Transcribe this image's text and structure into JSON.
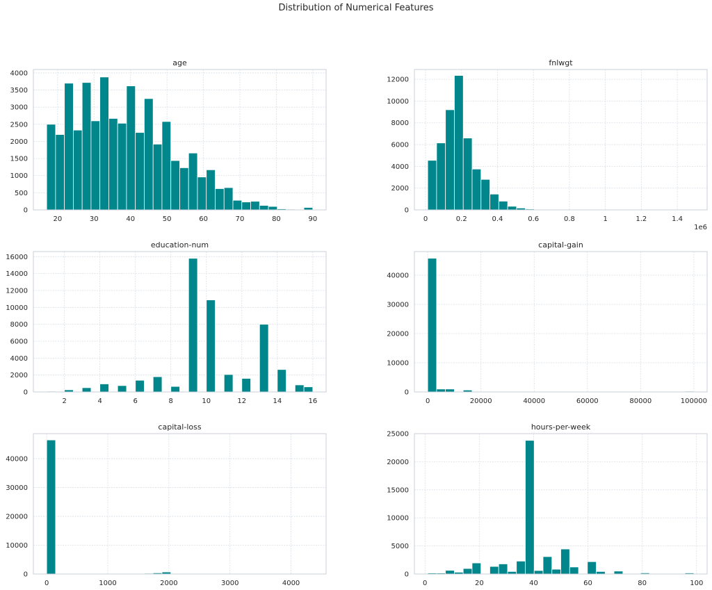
{
  "figure": {
    "title": "Distribution of Numerical Features",
    "bar_color": "#00868b"
  },
  "chart_data": [
    {
      "type": "bar",
      "title": "age",
      "xlabel": "",
      "ylabel": "",
      "grid": true,
      "xlim": [
        13.35,
        93.65
      ],
      "ylim": [
        0,
        4100
      ],
      "xticks": [
        20,
        30,
        40,
        50,
        60,
        70,
        80,
        90
      ],
      "yticks": [
        0,
        500,
        1000,
        1500,
        2000,
        2500,
        3000,
        3500,
        4000
      ],
      "bin_start": 17,
      "bin_width": 2.433,
      "values": [
        2500,
        2200,
        3700,
        2330,
        3720,
        2600,
        3880,
        2670,
        2530,
        3620,
        2260,
        3250,
        1920,
        2580,
        1440,
        1230,
        1660,
        960,
        1170,
        620,
        650,
        280,
        230,
        250,
        130,
        100,
        30,
        20,
        5,
        70
      ]
    },
    {
      "type": "bar",
      "title": "fnlwgt",
      "xlabel": "",
      "ylabel": "",
      "offset_label": "1e6",
      "grid": true,
      "xlim": [
        -0.062,
        1.566
      ],
      "ylim": [
        0,
        12900
      ],
      "xticks": [
        0.0,
        0.2,
        0.4,
        0.6,
        0.8,
        1.0,
        1.2,
        1.4
      ],
      "yticks": [
        0,
        2000,
        4000,
        6000,
        8000,
        10000,
        12000
      ],
      "bin_start": 0.012,
      "bin_width": 0.0494,
      "values": [
        4550,
        6150,
        9200,
        12350,
        6600,
        3750,
        2800,
        1450,
        800,
        330,
        170,
        80,
        40,
        20,
        10,
        6,
        4,
        3,
        2,
        2,
        1,
        1,
        1,
        1,
        0,
        0,
        0,
        0,
        0,
        1
      ]
    },
    {
      "type": "bar",
      "title": "education-num",
      "xlabel": "",
      "ylabel": "",
      "grid": true,
      "xlim": [
        0.25,
        16.75
      ],
      "ylim": [
        0,
        16600
      ],
      "xticks": [
        2,
        4,
        6,
        8,
        10,
        12,
        14,
        16
      ],
      "yticks": [
        0,
        2000,
        4000,
        6000,
        8000,
        10000,
        12000,
        14000,
        16000
      ],
      "bin_start": 1,
      "bin_width": 0.5,
      "values": [
        80,
        0,
        250,
        0,
        500,
        0,
        950,
        0,
        750,
        0,
        1380,
        0,
        1800,
        0,
        650,
        0,
        15800,
        0,
        10880,
        0,
        2060,
        0,
        1600,
        0,
        8000,
        0,
        2650,
        0,
        830,
        600
      ]
    },
    {
      "type": "bar",
      "title": "capital-gain",
      "xlabel": "",
      "ylabel": "",
      "grid": true,
      "xlim": [
        -5000,
        104999
      ],
      "ylim": [
        0,
        48100
      ],
      "xticks": [
        0,
        20000,
        40000,
        60000,
        80000,
        100000
      ],
      "yticks": [
        0,
        10000,
        20000,
        30000,
        40000
      ],
      "bin_start": 0,
      "bin_width": 3333.3,
      "values": [
        45800,
        1000,
        1000,
        120,
        650,
        100,
        40,
        20,
        10,
        5,
        5,
        5,
        3,
        2,
        2,
        2,
        1,
        1,
        1,
        1,
        1,
        1,
        1,
        1,
        1,
        1,
        1,
        1,
        1,
        240
      ]
    },
    {
      "type": "bar",
      "title": "capital-loss",
      "xlabel": "",
      "ylabel": "",
      "grid": true,
      "xlim": [
        -217.8,
        4573.8
      ],
      "ylim": [
        0,
        48700
      ],
      "xticks": [
        0,
        1000,
        2000,
        3000,
        4000
      ],
      "yticks": [
        0,
        10000,
        20000,
        30000,
        40000
      ],
      "bin_start": 0,
      "bin_width": 145.2,
      "values": [
        46500,
        10,
        10,
        20,
        15,
        15,
        20,
        15,
        20,
        20,
        200,
        250,
        400,
        700,
        100,
        50,
        30,
        20,
        10,
        10,
        5,
        5,
        5,
        3,
        3,
        3,
        2,
        2,
        2,
        5
      ]
    },
    {
      "type": "bar",
      "title": "hours-per-week",
      "xlabel": "",
      "ylabel": "",
      "grid": true,
      "xlim": [
        -3.9,
        103.9
      ],
      "ylim": [
        0,
        25000
      ],
      "xticks": [
        0,
        20,
        40,
        60,
        80,
        100
      ],
      "yticks": [
        0,
        5000,
        10000,
        15000,
        20000,
        25000
      ],
      "bin_start": 1,
      "bin_width": 3.267,
      "values": [
        180,
        170,
        650,
        320,
        980,
        1970,
        100,
        1350,
        1800,
        450,
        2300,
        23800,
        620,
        3100,
        850,
        4450,
        1250,
        100,
        2200,
        450,
        60,
        520,
        30,
        80,
        200,
        40,
        20,
        20,
        10,
        190
      ]
    }
  ]
}
